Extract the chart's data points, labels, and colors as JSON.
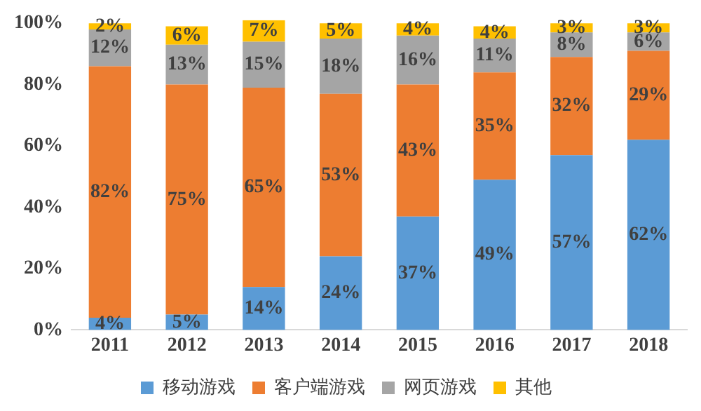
{
  "chart_data": {
    "type": "bar",
    "stacked": true,
    "categories": [
      "2011",
      "2012",
      "2013",
      "2014",
      "2015",
      "2016",
      "2017",
      "2018"
    ],
    "series": [
      {
        "name": "移动游戏",
        "color": "#5b9bd5",
        "values": [
          4,
          5,
          14,
          24,
          37,
          49,
          57,
          62
        ],
        "value_labels": [
          "4%",
          "5%",
          "14%",
          "24%",
          "37%",
          "49%",
          "57%",
          "62%"
        ]
      },
      {
        "name": "客户端游戏",
        "color": "#ed7d31",
        "values": [
          82,
          75,
          65,
          53,
          43,
          35,
          32,
          29
        ],
        "value_labels": [
          "82%",
          "75%",
          "65%",
          "53%",
          "43%",
          "35%",
          "32%",
          "29%"
        ]
      },
      {
        "name": "网页游戏",
        "color": "#a5a5a5",
        "values": [
          12,
          13,
          15,
          18,
          16,
          11,
          8,
          6
        ],
        "value_labels": [
          "12%",
          "13%",
          "15%",
          "18%",
          "16%",
          "11%",
          "8%",
          "6%"
        ]
      },
      {
        "name": "其他",
        "color": "#ffc000",
        "values": [
          2,
          6,
          7,
          5,
          4,
          4,
          3,
          3
        ],
        "value_labels": [
          "2%",
          "6%",
          "7%",
          "5%",
          "4%",
          "4%",
          "3%",
          "3%"
        ]
      }
    ],
    "ylim": [
      0,
      101
    ],
    "yticks": [
      {
        "value": 0,
        "label": "0%"
      },
      {
        "value": 20,
        "label": "20%"
      },
      {
        "value": 40,
        "label": "40%"
      },
      {
        "value": 60,
        "label": "60%"
      },
      {
        "value": 80,
        "label": "80%"
      },
      {
        "value": 100,
        "label": "100%"
      }
    ],
    "grid": false,
    "legend": "bottom"
  }
}
